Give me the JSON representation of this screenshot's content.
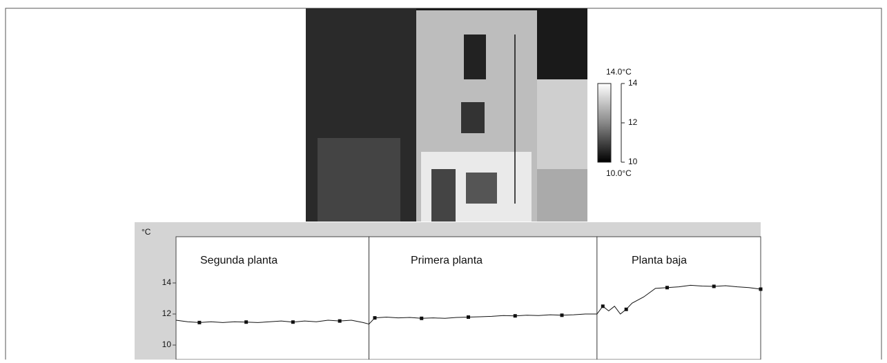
{
  "thermal_image": {
    "max_label": "14.0°C",
    "min_label": "10.0°C",
    "scale_lim": [
      10,
      14
    ],
    "scale_ticks": [
      10,
      12,
      14
    ]
  },
  "chart_data": {
    "type": "line",
    "ylabel": "°C",
    "annotations": [
      "Segunda planta",
      "Primera planta",
      "Planta baja"
    ],
    "dividers": [
      33,
      72
    ],
    "xlim": [
      0,
      100
    ],
    "ylim": [
      9,
      17
    ],
    "yticks": [
      10,
      12,
      14
    ],
    "color": "#111111",
    "x": [
      0,
      2,
      4,
      6,
      8,
      10,
      12,
      14,
      16,
      18,
      20,
      22,
      24,
      26,
      28,
      30,
      32,
      33,
      34,
      36,
      38,
      40,
      42,
      44,
      46,
      48,
      50,
      52,
      54,
      56,
      58,
      60,
      62,
      64,
      66,
      68,
      70,
      72,
      73,
      74,
      75,
      76,
      77,
      78,
      80,
      82,
      84,
      86,
      88,
      90,
      92,
      94,
      96,
      98,
      100
    ],
    "values": [
      11.6,
      11.5,
      11.45,
      11.5,
      11.45,
      11.5,
      11.48,
      11.45,
      11.5,
      11.55,
      11.48,
      11.55,
      11.5,
      11.6,
      11.55,
      11.6,
      11.45,
      11.35,
      11.75,
      11.8,
      11.75,
      11.78,
      11.72,
      11.75,
      11.72,
      11.78,
      11.8,
      11.82,
      11.85,
      11.9,
      11.88,
      11.92,
      11.9,
      11.95,
      11.92,
      11.95,
      12.0,
      12.0,
      12.5,
      12.2,
      12.5,
      12.0,
      12.3,
      12.7,
      13.1,
      13.65,
      13.7,
      13.75,
      13.85,
      13.8,
      13.78,
      13.82,
      13.75,
      13.7,
      13.6
    ]
  }
}
